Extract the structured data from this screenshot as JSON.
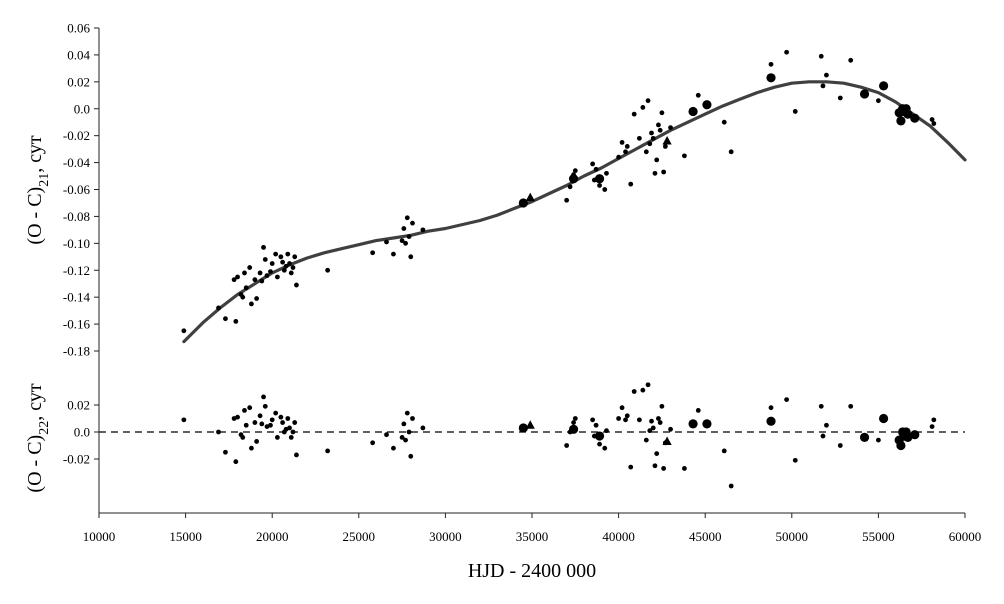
{
  "chart_data": {
    "type": "scatter",
    "x_axis": {
      "label": "HJD - 2400 000",
      "range": [
        10000,
        60000
      ],
      "ticks": [
        "10000",
        "15000",
        "20000",
        "25000",
        "30000",
        "35000",
        "40000",
        "45000",
        "50000",
        "55000",
        "60000"
      ]
    },
    "top_panel": {
      "ylabel_main": "(O - C)",
      "ylabel_sub": "21",
      "ylabel_unit": ", сут",
      "ylim": [
        -0.18,
        0.06
      ],
      "yticks": [
        "0.06",
        "0.04",
        "0.02",
        "0.0",
        "-0.02",
        "-0.04",
        "-0.06",
        "-0.08",
        "-0.10",
        "-0.12",
        "-0.14",
        "-0.16",
        "-0.18"
      ],
      "fit_curve": {
        "x": [
          14900,
          16000,
          17000,
          18000,
          19000,
          20000,
          21000,
          22000,
          23000,
          24000,
          25000,
          26000,
          27000,
          28000,
          29000,
          30000,
          31000,
          32000,
          33000,
          34000,
          35000,
          36000,
          37000,
          38000,
          39000,
          40000,
          41000,
          42000,
          43000,
          44000,
          45000,
          46000,
          47000,
          48000,
          49000,
          50000,
          51000,
          52000,
          53000,
          54000,
          55000,
          56000,
          57000,
          58000,
          59000,
          60000
        ],
        "y": [
          -0.173,
          -0.159,
          -0.148,
          -0.138,
          -0.13,
          -0.122,
          -0.116,
          -0.111,
          -0.107,
          -0.104,
          -0.101,
          -0.098,
          -0.096,
          -0.094,
          -0.091,
          -0.089,
          -0.086,
          -0.083,
          -0.079,
          -0.074,
          -0.069,
          -0.063,
          -0.057,
          -0.05,
          -0.044,
          -0.037,
          -0.03,
          -0.023,
          -0.016,
          -0.01,
          -0.004,
          0.002,
          0.007,
          0.012,
          0.016,
          0.019,
          0.02,
          0.02,
          0.019,
          0.016,
          0.012,
          0.005,
          -0.004,
          -0.013,
          -0.025,
          -0.038
        ]
      },
      "points_small": [
        [
          14900,
          -0.165
        ],
        [
          16900,
          -0.148
        ],
        [
          17300,
          -0.156
        ],
        [
          17800,
          -0.127
        ],
        [
          17900,
          -0.158
        ],
        [
          18000,
          -0.125
        ],
        [
          18200,
          -0.138
        ],
        [
          18300,
          -0.14
        ],
        [
          18400,
          -0.122
        ],
        [
          18500,
          -0.133
        ],
        [
          18700,
          -0.118
        ],
        [
          18800,
          -0.145
        ],
        [
          19000,
          -0.127
        ],
        [
          19100,
          -0.141
        ],
        [
          19300,
          -0.122
        ],
        [
          19400,
          -0.128
        ],
        [
          19500,
          -0.103
        ],
        [
          19600,
          -0.112
        ],
        [
          19700,
          -0.124
        ],
        [
          19900,
          -0.121
        ],
        [
          20000,
          -0.115
        ],
        [
          20200,
          -0.108
        ],
        [
          20300,
          -0.125
        ],
        [
          20500,
          -0.11
        ],
        [
          20600,
          -0.114
        ],
        [
          20700,
          -0.12
        ],
        [
          20800,
          -0.117
        ],
        [
          20900,
          -0.108
        ],
        [
          21000,
          -0.115
        ],
        [
          21100,
          -0.122
        ],
        [
          21200,
          -0.118
        ],
        [
          21300,
          -0.11
        ],
        [
          21400,
          -0.131
        ],
        [
          23200,
          -0.12
        ],
        [
          25800,
          -0.107
        ],
        [
          26600,
          -0.099
        ],
        [
          27000,
          -0.108
        ],
        [
          27500,
          -0.098
        ],
        [
          27600,
          -0.089
        ],
        [
          27700,
          -0.1
        ],
        [
          27800,
          -0.081
        ],
        [
          27900,
          -0.095
        ],
        [
          28000,
          -0.11
        ],
        [
          28100,
          -0.085
        ],
        [
          28700,
          -0.09
        ],
        [
          37000,
          -0.068
        ],
        [
          37200,
          -0.058
        ],
        [
          37400,
          -0.049
        ],
        [
          37500,
          -0.046
        ],
        [
          38500,
          -0.041
        ],
        [
          38600,
          -0.053
        ],
        [
          38700,
          -0.045
        ],
        [
          38900,
          -0.057
        ],
        [
          39000,
          -0.051
        ],
        [
          39200,
          -0.06
        ],
        [
          39300,
          -0.048
        ],
        [
          40000,
          -0.036
        ],
        [
          40200,
          -0.025
        ],
        [
          40400,
          -0.032
        ],
        [
          40500,
          -0.028
        ],
        [
          40700,
          -0.056
        ],
        [
          40900,
          -0.004
        ],
        [
          41200,
          -0.022
        ],
        [
          41400,
          0.001
        ],
        [
          41600,
          -0.032
        ],
        [
          41700,
          0.006
        ],
        [
          41800,
          -0.026
        ],
        [
          41900,
          -0.018
        ],
        [
          42000,
          -0.022
        ],
        [
          42100,
          -0.048
        ],
        [
          42200,
          -0.038
        ],
        [
          42300,
          -0.012
        ],
        [
          42400,
          -0.016
        ],
        [
          42500,
          -0.003
        ],
        [
          42600,
          -0.047
        ],
        [
          42700,
          -0.028
        ],
        [
          43000,
          -0.014
        ],
        [
          43800,
          -0.035
        ],
        [
          44600,
          0.01
        ],
        [
          46100,
          -0.01
        ],
        [
          46500,
          -0.032
        ],
        [
          48800,
          0.033
        ],
        [
          49700,
          0.042
        ],
        [
          50200,
          -0.002
        ],
        [
          51700,
          0.039
        ],
        [
          51800,
          0.017
        ],
        [
          52000,
          0.025
        ],
        [
          52800,
          0.008
        ],
        [
          53400,
          0.036
        ],
        [
          55000,
          0.006
        ],
        [
          57000,
          -0.008
        ],
        [
          58100,
          -0.008
        ],
        [
          58200,
          -0.011
        ]
      ],
      "points_large": [
        [
          34500,
          -0.07
        ],
        [
          37400,
          -0.052
        ],
        [
          38900,
          -0.052
        ],
        [
          44300,
          -0.002
        ],
        [
          45100,
          0.003
        ],
        [
          48800,
          0.023
        ],
        [
          54200,
          0.011
        ],
        [
          55300,
          0.017
        ],
        [
          56200,
          -0.003
        ],
        [
          56400,
          0.0
        ],
        [
          56500,
          -0.002
        ],
        [
          56600,
          0.0
        ],
        [
          56700,
          -0.004
        ],
        [
          56300,
          -0.009
        ],
        [
          57100,
          -0.007
        ]
      ],
      "points_triangle": [
        [
          34900,
          -0.066
        ],
        [
          42800,
          -0.024
        ]
      ]
    },
    "bottom_panel": {
      "ylabel_main": "(O - C)",
      "ylabel_sub": "22",
      "ylabel_unit": ", сут",
      "ylim": [
        -0.04,
        0.03
      ],
      "yticks": [
        "0.02",
        "0.0",
        "-0.02"
      ],
      "zero_line": "dashed",
      "points_small": [
        [
          14900,
          0.009
        ],
        [
          16900,
          0.0
        ],
        [
          17300,
          -0.015
        ],
        [
          17800,
          0.01
        ],
        [
          17900,
          -0.022
        ],
        [
          18000,
          0.011
        ],
        [
          18200,
          -0.002
        ],
        [
          18300,
          -0.004
        ],
        [
          18400,
          0.016
        ],
        [
          18500,
          0.005
        ],
        [
          18700,
          0.018
        ],
        [
          18800,
          -0.012
        ],
        [
          19000,
          0.007
        ],
        [
          19100,
          -0.007
        ],
        [
          19300,
          0.012
        ],
        [
          19400,
          0.006
        ],
        [
          19500,
          0.026
        ],
        [
          19600,
          0.019
        ],
        [
          19700,
          0.004
        ],
        [
          19900,
          0.005
        ],
        [
          20000,
          0.009
        ],
        [
          20200,
          0.014
        ],
        [
          20300,
          -0.004
        ],
        [
          20500,
          0.011
        ],
        [
          20600,
          0.007
        ],
        [
          20700,
          0.0
        ],
        [
          20800,
          0.002
        ],
        [
          20900,
          0.01
        ],
        [
          21000,
          0.003
        ],
        [
          21100,
          -0.004
        ],
        [
          21200,
          0.0
        ],
        [
          21300,
          0.007
        ],
        [
          21400,
          -0.017
        ],
        [
          23200,
          -0.014
        ],
        [
          25800,
          -0.008
        ],
        [
          26600,
          -0.002
        ],
        [
          27000,
          -0.012
        ],
        [
          27500,
          -0.004
        ],
        [
          27600,
          0.006
        ],
        [
          27700,
          -0.006
        ],
        [
          27800,
          0.014
        ],
        [
          27900,
          0.0
        ],
        [
          28000,
          -0.018
        ],
        [
          28100,
          0.01
        ],
        [
          28700,
          0.003
        ],
        [
          37000,
          -0.01
        ],
        [
          37200,
          0.0
        ],
        [
          37400,
          0.007
        ],
        [
          37500,
          0.01
        ],
        [
          38500,
          0.009
        ],
        [
          38600,
          -0.003
        ],
        [
          38700,
          0.005
        ],
        [
          38900,
          -0.009
        ],
        [
          39000,
          -0.002
        ],
        [
          39200,
          -0.012
        ],
        [
          39300,
          0.001
        ],
        [
          40000,
          0.01
        ],
        [
          40200,
          0.018
        ],
        [
          40400,
          0.009
        ],
        [
          40500,
          0.012
        ],
        [
          40700,
          -0.026
        ],
        [
          40900,
          0.03
        ],
        [
          41200,
          0.009
        ],
        [
          41400,
          0.031
        ],
        [
          41600,
          -0.006
        ],
        [
          41700,
          0.035
        ],
        [
          41800,
          0.001
        ],
        [
          41900,
          0.008
        ],
        [
          42000,
          0.003
        ],
        [
          42100,
          -0.025
        ],
        [
          42200,
          -0.016
        ],
        [
          42300,
          0.01
        ],
        [
          42400,
          0.007
        ],
        [
          42500,
          0.019
        ],
        [
          42600,
          -0.027
        ],
        [
          42700,
          -0.008
        ],
        [
          43000,
          0.002
        ],
        [
          43800,
          -0.027
        ],
        [
          44600,
          0.016
        ],
        [
          46100,
          -0.014
        ],
        [
          46500,
          -0.04
        ],
        [
          48800,
          0.018
        ],
        [
          49700,
          0.024
        ],
        [
          50200,
          -0.021
        ],
        [
          51700,
          0.019
        ],
        [
          51800,
          -0.003
        ],
        [
          52000,
          0.005
        ],
        [
          52800,
          -0.01
        ],
        [
          53400,
          0.019
        ],
        [
          55000,
          -0.006
        ],
        [
          57000,
          -0.002
        ],
        [
          58100,
          0.004
        ],
        [
          58200,
          0.009
        ]
      ],
      "points_large": [
        [
          34500,
          0.003
        ],
        [
          37400,
          0.002
        ],
        [
          38900,
          -0.003
        ],
        [
          44300,
          0.006
        ],
        [
          45100,
          0.006
        ],
        [
          48800,
          0.008
        ],
        [
          54200,
          -0.004
        ],
        [
          55300,
          0.01
        ],
        [
          56200,
          -0.006
        ],
        [
          56400,
          0.0
        ],
        [
          56500,
          -0.003
        ],
        [
          56600,
          0.0
        ],
        [
          56700,
          -0.004
        ],
        [
          56300,
          -0.01
        ],
        [
          57100,
          -0.002
        ]
      ],
      "points_triangle": [
        [
          34900,
          0.005
        ],
        [
          42800,
          -0.007
        ]
      ]
    }
  }
}
